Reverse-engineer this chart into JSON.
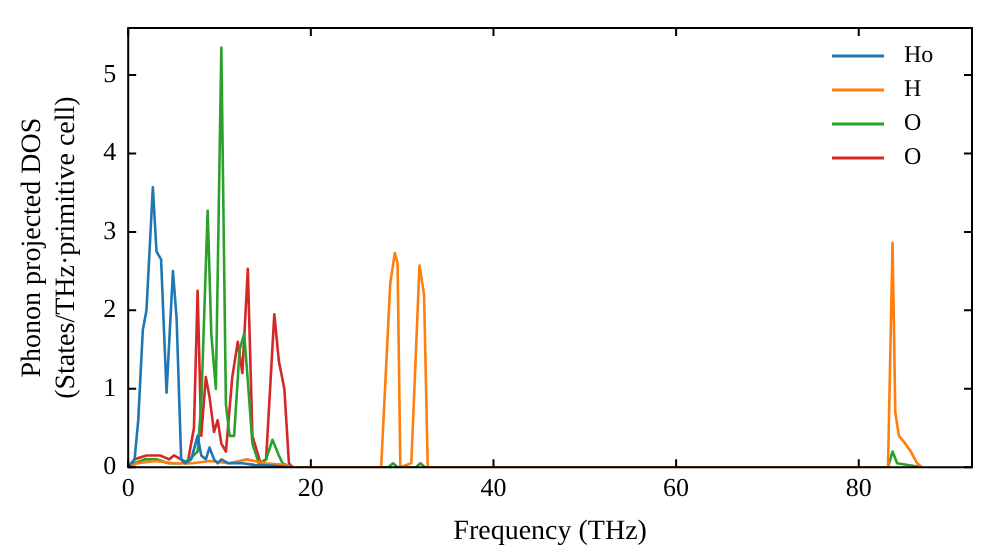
{
  "chart_data": {
    "type": "line",
    "xlabel": "Frequency (THz)",
    "ylabel": "Phonon projected DOS\n(States/THz·primitive cell)",
    "xlim": [
      0,
      92.4
    ],
    "ylim": [
      0,
      5.6
    ],
    "xticks": [
      0,
      20,
      40,
      60,
      80
    ],
    "yticks": [
      0,
      1,
      2,
      3,
      4,
      5
    ],
    "grid": false,
    "legend": "top right",
    "marker": "none",
    "line_style": "solid",
    "series": [
      {
        "name": "Ho",
        "color": "#1f77b4",
        "x": [
          0,
          0.7,
          1.1,
          1.6,
          2,
          2.7,
          3.1,
          3.6,
          4.2,
          4.9,
          5.3,
          5.8,
          6.2,
          6.9,
          7.6,
          8,
          8.5,
          8.9,
          9.4,
          9.8,
          10.2,
          11,
          12.5,
          13.8,
          15.6,
          17.8
        ],
        "values": [
          0,
          0.1,
          0.6,
          1.75,
          2,
          3.57,
          2.75,
          2.65,
          0.95,
          2.5,
          1.9,
          0.1,
          0.05,
          0.1,
          0.4,
          0.15,
          0.1,
          0.25,
          0.1,
          0.05,
          0.1,
          0.05,
          0.05,
          0.03,
          0.02,
          0
        ]
      },
      {
        "name": "H",
        "color": "#ff7f0e",
        "x": [
          0,
          1,
          3,
          5,
          7,
          9,
          11,
          13,
          15,
          17,
          18,
          27.7,
          28.7,
          29.2,
          29.5,
          29.8,
          31,
          31.9,
          32.4,
          32.8,
          83.2,
          83.7,
          84,
          84.4,
          85.1,
          85.7,
          86.4,
          86.9
        ],
        "values": [
          0,
          0.05,
          0.08,
          0.05,
          0.05,
          0.08,
          0.05,
          0.1,
          0.05,
          0.03,
          0,
          0,
          2.35,
          2.73,
          2.6,
          0,
          0.05,
          2.57,
          2.2,
          0,
          0,
          2.86,
          0.7,
          0.4,
          0.3,
          0.2,
          0.05,
          0
        ]
      },
      {
        "name": "O",
        "color": "#2ca02c",
        "x": [
          0,
          0.7,
          1.8,
          3.1,
          4.4,
          5.8,
          6.7,
          7.6,
          8,
          8.7,
          9.1,
          9.6,
          10.2,
          10.7,
          11.1,
          11.6,
          12.2,
          12.7,
          13.1,
          13.6,
          14.3,
          15.1,
          15.8,
          16.5,
          16.9,
          17.8,
          28.5,
          29,
          29.5,
          31.5,
          32,
          32.5,
          83.2,
          83.7,
          84.2,
          86.9
        ],
        "values": [
          0,
          0.05,
          0.1,
          0.1,
          0.05,
          0.05,
          0.1,
          0.2,
          0.8,
          3.27,
          1.7,
          1,
          5.35,
          0.8,
          0.4,
          0.4,
          1.5,
          1.7,
          1.1,
          0.3,
          0.05,
          0.1,
          0.35,
          0.15,
          0.05,
          0,
          0,
          0.05,
          0,
          0,
          0.05,
          0,
          0,
          0.2,
          0.05,
          0
        ]
      },
      {
        "name": "O",
        "color": "#d62728",
        "x": [
          0,
          0.7,
          2,
          3.5,
          4.5,
          5,
          5.8,
          6.5,
          7.2,
          7.6,
          8,
          8.5,
          8.9,
          9.4,
          9.8,
          10.2,
          10.7,
          11.4,
          12,
          12.5,
          13.1,
          13.6,
          14.5,
          15.1,
          16,
          16.5,
          17.1,
          17.6,
          18
        ],
        "values": [
          0,
          0.1,
          0.15,
          0.15,
          0.1,
          0.15,
          0.1,
          0.05,
          0.5,
          2.25,
          0.4,
          1.15,
          0.9,
          0.45,
          0.6,
          0.3,
          0.2,
          1.15,
          1.6,
          1.2,
          2.53,
          0.4,
          0.05,
          0.1,
          1.95,
          1.35,
          1,
          0.05,
          0
        ]
      }
    ]
  }
}
